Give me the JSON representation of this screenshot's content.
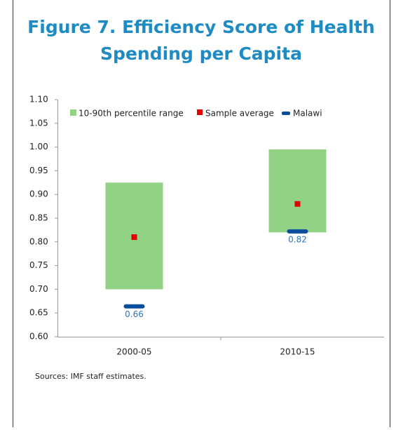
{
  "chart_data": {
    "type": "range-bar",
    "title": "Figure 7. Efficiency Score of Health Spending per Capita",
    "categories": [
      "2000-05",
      "2010-15"
    ],
    "series": [
      {
        "name": "10-90th percentile range",
        "color": "#92d285",
        "low": [
          0.7,
          0.82
        ],
        "high": [
          0.925,
          0.995
        ]
      },
      {
        "name": "Sample average",
        "color": "#e00000",
        "values": [
          0.81,
          0.88
        ]
      },
      {
        "name": "Malawi",
        "color": "#0b4f9c",
        "values": [
          0.664,
          0.822
        ],
        "value_labels": [
          "0.66",
          "0.82"
        ]
      }
    ],
    "ylim": [
      0.6,
      1.1
    ],
    "yticks": [
      {
        "value": 0.6,
        "label": "0.60"
      },
      0.65,
      {
        "value": 0.7,
        "label": "0.70"
      },
      0.75,
      {
        "value": 0.8,
        "label": "0.80"
      },
      0.85,
      {
        "value": 0.9,
        "label": "0.90"
      },
      0.95,
      {
        "value": 1.0,
        "label": "1.00"
      },
      1.05,
      {
        "value": 1.1,
        "label": "1.10"
      }
    ],
    "source": "Sources: IMF staff estimates.",
    "grid": false
  }
}
